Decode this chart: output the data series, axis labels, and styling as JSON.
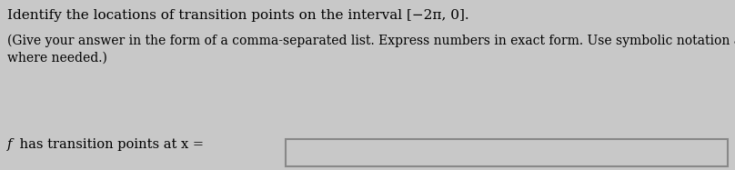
{
  "line1": "Identify the locations of transition points on the interval [−2π, 0].",
  "line2": "(Give your answer in the form of a comma-separated list. Express numbers in exact form. Use symbolic notation and fractions",
  "line3": "where needed.)",
  "line4_italic": "f",
  "line4_rest": " has transition points at x =",
  "background_color": "#c8c8c8",
  "text_color": "#000000",
  "box_bg_color": "#c8c8c8",
  "box_border_color": "#888888",
  "font_size_title": 11.0,
  "font_size_body": 10.0,
  "font_size_bottom": 10.5
}
